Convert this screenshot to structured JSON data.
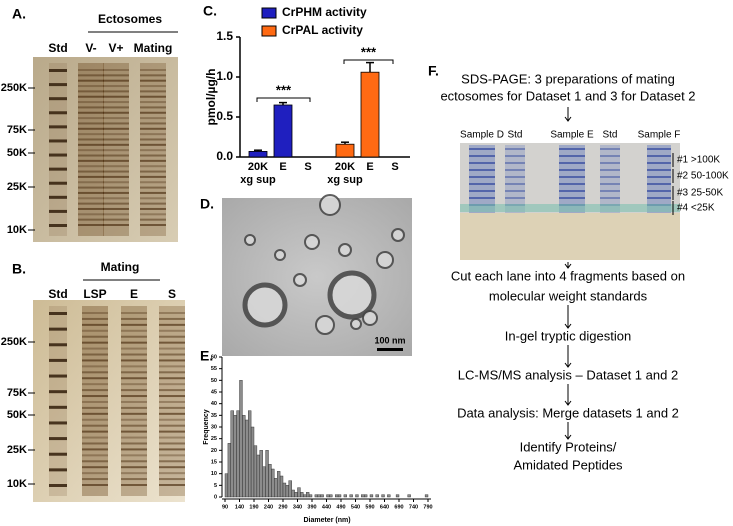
{
  "panels": {
    "a": {
      "label": "A.",
      "group_label": "Ectosomes",
      "lanes": [
        "Std",
        "V-",
        "V+",
        "Mating"
      ],
      "markers": [
        "250K",
        "75K",
        "50K",
        "25K",
        "10K"
      ]
    },
    "b": {
      "label": "B.",
      "group_label": "Mating",
      "lanes": [
        "Std",
        "LSP",
        "E",
        "S"
      ],
      "markers": [
        "250K",
        "75K",
        "50K",
        "25K",
        "10K"
      ]
    },
    "d": {
      "label": "D.",
      "scale_bar": "100 nm"
    },
    "f": {
      "label": "F.",
      "intro": [
        "SDS-PAGE: 3 preparations of mating",
        "ectosomes for Dataset 1 and 3 for Dataset 2"
      ],
      "gel_lanes": [
        "Sample D",
        "Std",
        "Sample E",
        "Std",
        "Sample F"
      ],
      "fractions": [
        "#1 >100K",
        "#2 50-100K",
        "#3 25-50K",
        "#4 <25K"
      ],
      "steps": [
        [
          "Cut each lane into 4 fragments based on",
          "molecular weight standards"
        ],
        [
          "In-gel tryptic digestion"
        ],
        [
          "LC-MS/MS analysis – Dataset 1 and 2"
        ],
        [
          "Data analysis: Merge datasets 1 and 2"
        ],
        [
          "Identify Proteins/",
          "Amidated Peptides"
        ]
      ]
    }
  },
  "chart_data": [
    {
      "type": "bar",
      "panel_label": "C.",
      "y_label": "pmol/µg/h",
      "categories": [
        "20K xg sup",
        "E",
        "S"
      ],
      "series": [
        {
          "name": "CrPHM activity",
          "color": "#1f1fbf",
          "values": [
            0.07,
            0.65,
            0
          ],
          "errors": [
            0.015,
            0.03,
            0
          ]
        },
        {
          "name": "CrPAL activity",
          "color": "#ff6a13",
          "values": [
            0.16,
            1.06,
            0
          ],
          "errors": [
            0.025,
            0.12,
            0
          ]
        }
      ],
      "annotations": [
        "***",
        "***"
      ],
      "ylim": [
        0,
        1.5
      ],
      "yticks": [
        {
          "value": 0,
          "label": "0.0"
        },
        0.5,
        {
          "value": 1,
          "label": "1.0"
        },
        1.5
      ]
    },
    {
      "type": "histogram",
      "panel_label": "E.",
      "x_label": "Diameter (nm)",
      "y_label": "Frequency",
      "color": "#8c8c8c",
      "bins": [
        90,
        100,
        110,
        120,
        130,
        140,
        150,
        160,
        170,
        180,
        190,
        200,
        210,
        220,
        230,
        240,
        250,
        260,
        270,
        280,
        290,
        300,
        310,
        320,
        330,
        340,
        350,
        360,
        370,
        380,
        390,
        400,
        410,
        420,
        430,
        440,
        450,
        460,
        470,
        480,
        490,
        500,
        510,
        520,
        530,
        540,
        550,
        560,
        570,
        580,
        590,
        600,
        610,
        620,
        630,
        640,
        650,
        660,
        670,
        680,
        690,
        700,
        710,
        720,
        730,
        740,
        750,
        760,
        770,
        780,
        790
      ],
      "counts": [
        10,
        23,
        37,
        35,
        37,
        50,
        35,
        33,
        37,
        30,
        22,
        18,
        20,
        13,
        20,
        14,
        12,
        8,
        11,
        9,
        6,
        5,
        7,
        3,
        2,
        4,
        2,
        1,
        2,
        1,
        0,
        1,
        1,
        1,
        0,
        1,
        1,
        0,
        1,
        1,
        0,
        1,
        0,
        1,
        0,
        1,
        0,
        1,
        1,
        0,
        1,
        0,
        1,
        0,
        1,
        0,
        1,
        0,
        0,
        1,
        0,
        0,
        0,
        1,
        0,
        0,
        0,
        0,
        0,
        1
      ],
      "xlim": [
        90,
        790
      ],
      "ylim": [
        0,
        60
      ],
      "xticks": [
        90,
        140,
        190,
        240,
        290,
        340,
        390,
        440,
        490,
        540,
        590,
        640,
        690,
        740,
        790
      ],
      "yticks": [
        0,
        5,
        10,
        15,
        20,
        25,
        30,
        35,
        40,
        45,
        50,
        55,
        60
      ]
    }
  ]
}
